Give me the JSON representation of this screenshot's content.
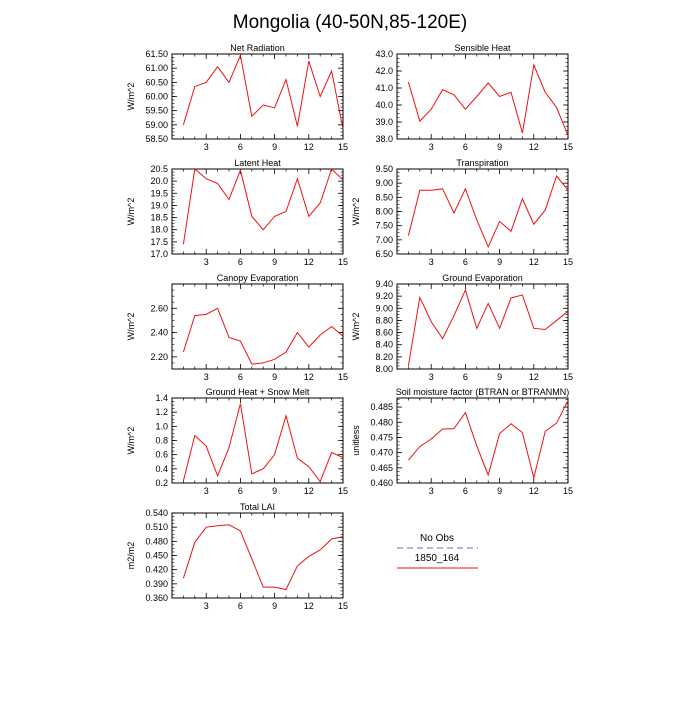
{
  "title": "Mongolia (40-50N,85-120E)",
  "colors": {
    "model_line": "#ee1111",
    "obs_line": "#8888dd",
    "axis": "#000000"
  },
  "chart_data": [
    {
      "type": "line",
      "title": "Net Radiation",
      "ylabel": "W/m^2",
      "xlim": [
        0,
        15
      ],
      "ylim": [
        58.5,
        61.5
      ],
      "xticks": [
        "3",
        "6",
        "9",
        "12",
        "15"
      ],
      "yticks": [
        "58.50",
        "59.00",
        "59.50",
        "60.00",
        "60.50",
        "61.00",
        "61.50"
      ],
      "series": [
        {
          "name": "1850_164",
          "x": [
            1,
            2,
            3,
            4,
            5,
            6,
            7,
            8,
            9,
            10,
            11,
            12,
            13,
            14,
            15
          ],
          "y": [
            59.0,
            60.35,
            60.5,
            61.05,
            60.5,
            61.45,
            59.3,
            59.7,
            59.6,
            60.6,
            58.95,
            61.25,
            60.0,
            60.9,
            58.85
          ]
        }
      ]
    },
    {
      "type": "line",
      "title": "Sensible Heat",
      "ylabel": "",
      "xlim": [
        0,
        15
      ],
      "ylim": [
        38.0,
        43.0
      ],
      "xticks": [
        "3",
        "6",
        "9",
        "12",
        "15"
      ],
      "yticks": [
        "38.0",
        "39.0",
        "40.0",
        "41.0",
        "42.0",
        "43.0"
      ],
      "series": [
        {
          "name": "1850_164",
          "x": [
            1,
            2,
            3,
            4,
            5,
            6,
            7,
            8,
            9,
            10,
            11,
            12,
            13,
            14,
            15
          ],
          "y": [
            41.35,
            39.05,
            39.75,
            40.9,
            40.6,
            39.75,
            40.5,
            41.3,
            40.5,
            40.75,
            38.35,
            42.35,
            40.75,
            39.85,
            38.2
          ]
        }
      ]
    },
    {
      "type": "line",
      "title": "Latent Heat",
      "ylabel": "W/m^2",
      "xlim": [
        0,
        15
      ],
      "ylim": [
        17.0,
        20.5
      ],
      "xticks": [
        "3",
        "6",
        "9",
        "12",
        "15"
      ],
      "yticks": [
        "17.0",
        "17.5",
        "18.0",
        "18.5",
        "19.0",
        "19.5",
        "20.0",
        "20.5"
      ],
      "series": [
        {
          "name": "1850_164",
          "x": [
            1,
            2,
            3,
            4,
            5,
            6,
            7,
            8,
            9,
            10,
            11,
            12,
            13,
            14,
            15
          ],
          "y": [
            17.4,
            20.5,
            20.1,
            19.9,
            19.25,
            20.45,
            18.55,
            18.0,
            18.55,
            18.75,
            20.1,
            18.55,
            19.1,
            20.5,
            20.05
          ]
        }
      ]
    },
    {
      "type": "line",
      "title": "Transpiration",
      "ylabel": "W/m^2",
      "xlim": [
        0,
        15
      ],
      "ylim": [
        6.5,
        9.5
      ],
      "xticks": [
        "3",
        "6",
        "9",
        "12",
        "15"
      ],
      "yticks": [
        "6.50",
        "7.00",
        "7.50",
        "8.00",
        "8.50",
        "9.00",
        "9.50"
      ],
      "series": [
        {
          "name": "1850_164",
          "x": [
            1,
            2,
            3,
            4,
            5,
            6,
            7,
            8,
            9,
            10,
            11,
            12,
            13,
            14,
            15
          ],
          "y": [
            7.15,
            8.75,
            8.75,
            8.8,
            7.95,
            8.8,
            7.7,
            6.75,
            7.65,
            7.3,
            8.45,
            7.55,
            8.05,
            9.25,
            8.75
          ]
        }
      ]
    },
    {
      "type": "line",
      "title": "Canopy Evaporation",
      "ylabel": "W/m^2",
      "xlim": [
        0,
        15
      ],
      "ylim": [
        2.1,
        2.8
      ],
      "xticks": [
        "3",
        "6",
        "9",
        "12",
        "15"
      ],
      "yticks": [
        "2.20",
        "2.40",
        "2.60"
      ],
      "ytick_values": [
        2.2,
        2.4,
        2.6
      ],
      "series": [
        {
          "name": "1850_164",
          "x": [
            1,
            2,
            3,
            4,
            5,
            6,
            7,
            8,
            9,
            10,
            11,
            12,
            13,
            14,
            15
          ],
          "y": [
            2.24,
            2.54,
            2.55,
            2.6,
            2.36,
            2.33,
            2.14,
            2.15,
            2.18,
            2.24,
            2.4,
            2.28,
            2.38,
            2.45,
            2.37
          ]
        }
      ]
    },
    {
      "type": "line",
      "title": "Ground Evaporation",
      "ylabel": "W/m^2",
      "xlim": [
        0,
        15
      ],
      "ylim": [
        8.0,
        9.4
      ],
      "xticks": [
        "3",
        "6",
        "9",
        "12",
        "15"
      ],
      "yticks": [
        "8.00",
        "8.20",
        "8.40",
        "8.60",
        "8.80",
        "9.00",
        "9.20",
        "9.40"
      ],
      "series": [
        {
          "name": "1850_164",
          "x": [
            1,
            2,
            3,
            4,
            5,
            6,
            7,
            8,
            9,
            10,
            11,
            12,
            13,
            14,
            15
          ],
          "y": [
            8.05,
            9.18,
            8.78,
            8.5,
            8.88,
            9.3,
            8.67,
            9.08,
            8.67,
            9.17,
            9.22,
            8.67,
            8.65,
            8.8,
            8.95
          ]
        }
      ]
    },
    {
      "type": "line",
      "title": "Ground Heat + Snow Melt",
      "ylabel": "W/m^2",
      "xlim": [
        0,
        15
      ],
      "ylim": [
        0.2,
        1.4
      ],
      "xticks": [
        "3",
        "6",
        "9",
        "12",
        "15"
      ],
      "yticks": [
        "0.2",
        "0.4",
        "0.6",
        "0.8",
        "1.0",
        "1.2",
        "1.4"
      ],
      "series": [
        {
          "name": "1850_164",
          "x": [
            1,
            2,
            3,
            4,
            5,
            6,
            7,
            8,
            9,
            10,
            11,
            12,
            13,
            14,
            15
          ],
          "y": [
            0.23,
            0.87,
            0.72,
            0.3,
            0.7,
            1.32,
            0.33,
            0.4,
            0.6,
            1.15,
            0.55,
            0.43,
            0.22,
            0.63,
            0.56
          ]
        }
      ]
    },
    {
      "type": "line",
      "title": "Soil moisture factor (BTRAN or BTRANMN)",
      "ylabel": "unitless",
      "xlim": [
        0,
        15
      ],
      "ylim": [
        0.46,
        0.488
      ],
      "xticks": [
        "3",
        "6",
        "9",
        "12",
        "15"
      ],
      "yticks": [
        "0.460",
        "0.465",
        "0.470",
        "0.475",
        "0.480",
        "0.485"
      ],
      "ytick_values": [
        0.46,
        0.465,
        0.47,
        0.475,
        0.48,
        0.485
      ],
      "series": [
        {
          "name": "1850_164",
          "x": [
            1,
            2,
            3,
            4,
            5,
            6,
            7,
            8,
            9,
            10,
            11,
            12,
            13,
            14,
            15
          ],
          "y": [
            0.4675,
            0.472,
            0.4745,
            0.4778,
            0.4779,
            0.4832,
            0.4722,
            0.4626,
            0.4763,
            0.4795,
            0.4766,
            0.4617,
            0.477,
            0.4797,
            0.4872
          ]
        }
      ]
    },
    {
      "type": "line",
      "title": "Total LAI",
      "ylabel": "m2/m2",
      "xlim": [
        0,
        15
      ],
      "ylim": [
        0.36,
        0.54
      ],
      "xticks": [
        "3",
        "6",
        "9",
        "12",
        "15"
      ],
      "yticks": [
        "0.360",
        "0.390",
        "0.420",
        "0.450",
        "0.480",
        "0.510",
        "0.540"
      ],
      "series": [
        {
          "name": "1850_164",
          "x": [
            1,
            2,
            3,
            4,
            5,
            6,
            7,
            8,
            9,
            10,
            11,
            12,
            13,
            14,
            15
          ],
          "y": [
            0.402,
            0.478,
            0.51,
            0.513,
            0.515,
            0.502,
            0.443,
            0.383,
            0.383,
            0.378,
            0.428,
            0.448,
            0.462,
            0.485,
            0.49
          ]
        }
      ]
    }
  ],
  "legend": {
    "entries": [
      {
        "label": "No Obs",
        "style": "dashed"
      },
      {
        "label": "1850_164",
        "style": "solid"
      }
    ]
  }
}
